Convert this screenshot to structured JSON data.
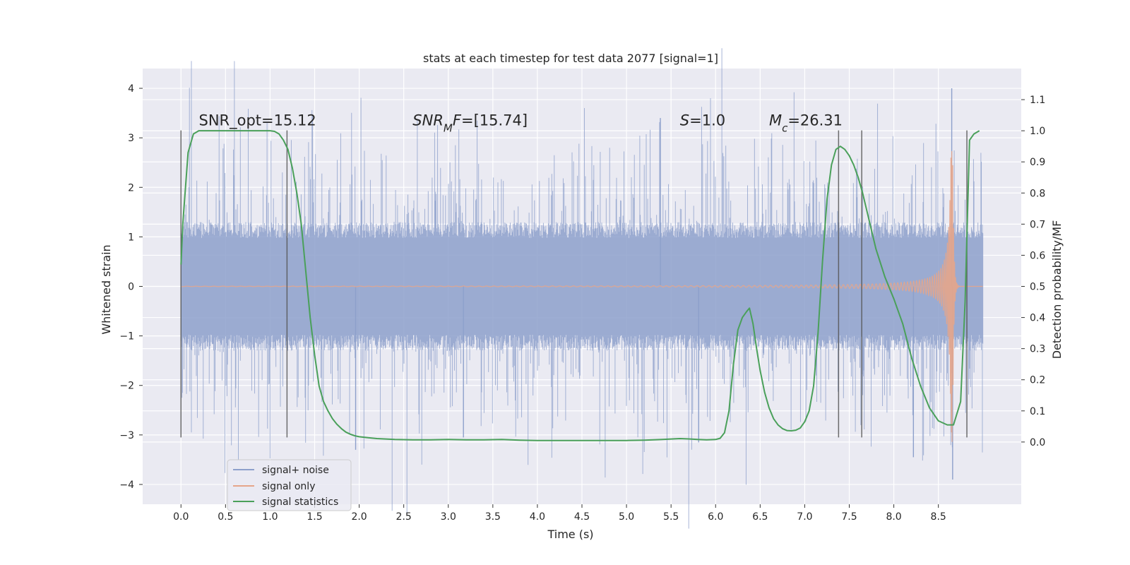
{
  "chart_data": {
    "type": "line",
    "title": "stats at each timestep for test data 2077 [signal=1]",
    "xlabel": "Time (s)",
    "ylabel_left": "Whitened strain",
    "ylabel_right": "Detection probability/MF",
    "xlim": [
      -0.43,
      9.43
    ],
    "ylim_left": [
      -4.4,
      4.4
    ],
    "ylim_right": [
      -0.2,
      1.2
    ],
    "x_ticks": [
      "0.0",
      "0.5",
      "1.0",
      "1.5",
      "2.0",
      "2.5",
      "3.0",
      "3.5",
      "4.0",
      "4.5",
      "5.0",
      "5.5",
      "6.0",
      "6.5",
      "7.0",
      "7.5",
      "8.0",
      "8.5"
    ],
    "x_tick_values": [
      0.0,
      0.5,
      1.0,
      1.5,
      2.0,
      2.5,
      3.0,
      3.5,
      4.0,
      4.5,
      5.0,
      5.5,
      6.0,
      6.5,
      7.0,
      7.5,
      8.0,
      8.5
    ],
    "y_ticks_left": [
      4,
      3,
      2,
      1,
      0,
      -1,
      -2,
      -3,
      -4
    ],
    "y_ticks_left_labels": [
      "4",
      "3",
      "2",
      "1",
      "0",
      "−1",
      "−2",
      "−3",
      "−4"
    ],
    "y_ticks_right": [
      "1.1",
      "1.0",
      "0.9",
      "0.8",
      "0.7",
      "0.6",
      "0.5",
      "0.4",
      "0.3",
      "0.2",
      "0.1",
      "0.0"
    ],
    "y_tick_values_right": [
      1.1,
      1.0,
      0.9,
      0.8,
      0.7,
      0.6,
      0.5,
      0.4,
      0.3,
      0.2,
      0.1,
      0.0
    ],
    "grid": true,
    "legend_position": "lower-left",
    "annotations": [
      {
        "label": "SNR_opt=15.12",
        "x": 0.2,
        "y": 3.25
      },
      {
        "label": "SNR_MF=[15.74]",
        "x": 2.6,
        "y": 3.25
      },
      {
        "label": "S=1.0",
        "x": 5.6,
        "y": 3.25
      },
      {
        "label": "M_c=26.31",
        "x": 6.6,
        "y": 3.25
      }
    ],
    "vertical_markers": [
      0.0,
      1.19,
      7.38,
      7.64,
      8.82
    ],
    "vertical_marker_range": [
      -3.05,
      3.15
    ],
    "series": [
      {
        "name": "signal+ noise",
        "kind": "noise",
        "color": "#8da0cb",
        "x_range": [
          0.0,
          9.0
        ],
        "typical_amplitude": 1.3,
        "peak_amplitude": 2.5,
        "outliers": [
          {
            "x": 5.38,
            "y": 3.4
          },
          {
            "x": 8.65,
            "y": 4.0
          },
          {
            "x": 1.96,
            "y": -3.3
          },
          {
            "x": 3.17,
            "y": -3.05
          },
          {
            "x": 5.81,
            "y": -3.15
          },
          {
            "x": 8.22,
            "y": -3.45
          },
          {
            "x": 8.66,
            "y": -3.9
          }
        ]
      },
      {
        "name": "signal only",
        "kind": "chirp",
        "color": "#e5a58a",
        "x_range": [
          0.0,
          9.0
        ],
        "merger_time": 8.66,
        "peak_amplitude": 3.15
      },
      {
        "name": "signal statistics",
        "kind": "line",
        "color": "#4aa05a",
        "axis": "right",
        "x": [
          0.0,
          0.02,
          0.08,
          0.14,
          0.2,
          0.3,
          0.4,
          0.5,
          0.6,
          0.7,
          0.8,
          0.9,
          1.0,
          1.05,
          1.1,
          1.15,
          1.2,
          1.25,
          1.3,
          1.35,
          1.4,
          1.45,
          1.5,
          1.55,
          1.6,
          1.65,
          1.7,
          1.75,
          1.8,
          1.85,
          1.9,
          1.95,
          2.0,
          2.1,
          2.2,
          2.4,
          2.6,
          2.8,
          3.0,
          3.2,
          3.4,
          3.6,
          3.8,
          4.0,
          4.2,
          4.4,
          4.6,
          4.8,
          5.0,
          5.2,
          5.4,
          5.6,
          5.7,
          5.8,
          5.9,
          6.0,
          6.05,
          6.1,
          6.15,
          6.2,
          6.25,
          6.3,
          6.35,
          6.38,
          6.42,
          6.46,
          6.5,
          6.55,
          6.6,
          6.65,
          6.7,
          6.75,
          6.8,
          6.85,
          6.9,
          6.95,
          7.0,
          7.05,
          7.1,
          7.15,
          7.2,
          7.25,
          7.3,
          7.35,
          7.4,
          7.45,
          7.5,
          7.55,
          7.6,
          7.65,
          7.7,
          7.75,
          7.8,
          7.9,
          8.0,
          8.1,
          8.2,
          8.3,
          8.4,
          8.5,
          8.6,
          8.67,
          8.75,
          8.8,
          8.85,
          8.9,
          8.96
        ],
        "y": [
          0.57,
          0.7,
          0.93,
          0.99,
          1.0,
          1.0,
          1.0,
          1.0,
          1.0,
          1.0,
          1.0,
          1.0,
          1.0,
          0.998,
          0.99,
          0.97,
          0.94,
          0.88,
          0.8,
          0.7,
          0.55,
          0.4,
          0.28,
          0.18,
          0.13,
          0.1,
          0.075,
          0.057,
          0.043,
          0.032,
          0.025,
          0.02,
          0.017,
          0.014,
          0.011,
          0.008,
          0.007,
          0.007,
          0.008,
          0.007,
          0.007,
          0.008,
          0.006,
          0.005,
          0.005,
          0.005,
          0.005,
          0.005,
          0.005,
          0.006,
          0.008,
          0.011,
          0.01,
          0.008,
          0.007,
          0.008,
          0.012,
          0.03,
          0.1,
          0.25,
          0.36,
          0.4,
          0.42,
          0.43,
          0.38,
          0.3,
          0.23,
          0.16,
          0.11,
          0.075,
          0.055,
          0.043,
          0.037,
          0.036,
          0.038,
          0.045,
          0.065,
          0.1,
          0.18,
          0.35,
          0.58,
          0.78,
          0.89,
          0.94,
          0.95,
          0.94,
          0.92,
          0.89,
          0.85,
          0.8,
          0.74,
          0.68,
          0.62,
          0.53,
          0.46,
          0.38,
          0.27,
          0.18,
          0.11,
          0.068,
          0.055,
          0.055,
          0.13,
          0.45,
          0.97,
          0.99,
          1.0
        ]
      }
    ]
  }
}
